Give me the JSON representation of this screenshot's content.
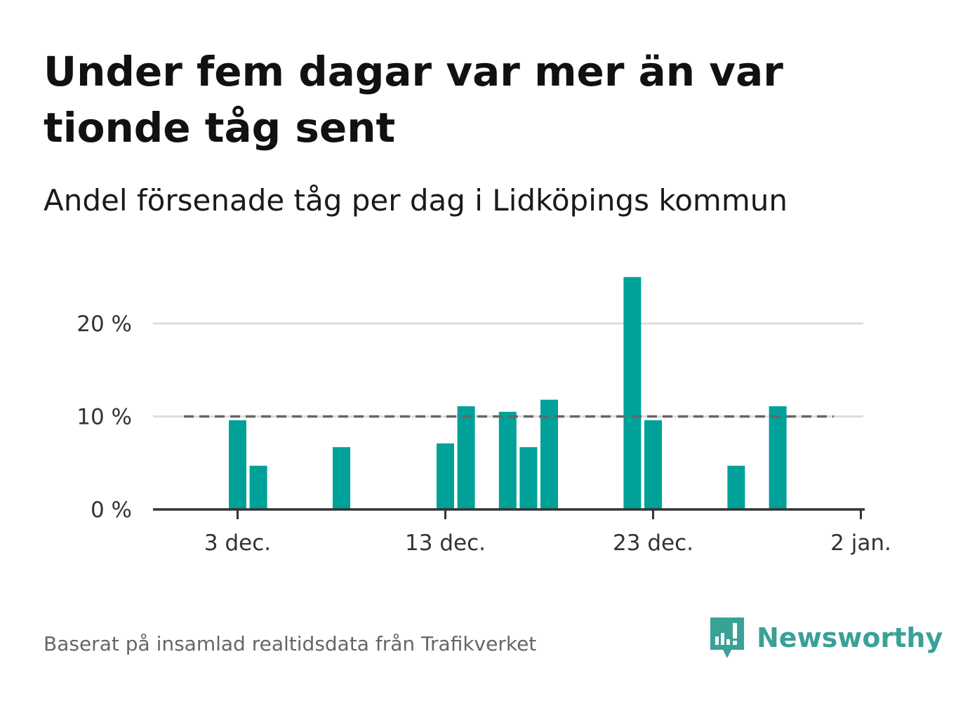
{
  "title": "Under fem dagar var mer än var tionde tåg sent",
  "subtitle": "Andel försenade tåg per dag i Lidköpings kommun",
  "source": "Baserat på insamlad realtidsdata från Trafikverket",
  "brand": {
    "name": "Newsworthy",
    "logo_icon": "newsworthy-logo-icon",
    "color": "#3aa197"
  },
  "colors": {
    "bar": "#00a199",
    "reference_line": "#666666",
    "grid": "#dddddd",
    "axis": "#333333"
  },
  "chart_data": {
    "type": "bar",
    "x_type": "date",
    "x_ticks": [
      "3 dec.",
      "13 dec.",
      "23 dec.",
      "2 jan."
    ],
    "y_ticks": [
      "0 %",
      "10 %",
      "20 %"
    ],
    "ylim": [
      0,
      26
    ],
    "grid": true,
    "reference_line": {
      "value": 10,
      "style": "dashed"
    },
    "series": [
      {
        "values": [
          {
            "date": "3 dec.",
            "value": 9.6
          },
          {
            "date": "4 dec.",
            "value": 4.7
          },
          {
            "date": "8 dec.",
            "value": 6.7
          },
          {
            "date": "13 dec.",
            "value": 7.1
          },
          {
            "date": "14 dec.",
            "value": 11.1
          },
          {
            "date": "16 dec.",
            "value": 10.5
          },
          {
            "date": "17 dec.",
            "value": 6.7
          },
          {
            "date": "18 dec.",
            "value": 11.8
          },
          {
            "date": "22 dec.",
            "value": 25.0
          },
          {
            "date": "23 dec.",
            "value": 9.6
          },
          {
            "date": "27 dec.",
            "value": 4.7
          },
          {
            "date": "29 dec.",
            "value": 11.1
          }
        ]
      }
    ]
  }
}
